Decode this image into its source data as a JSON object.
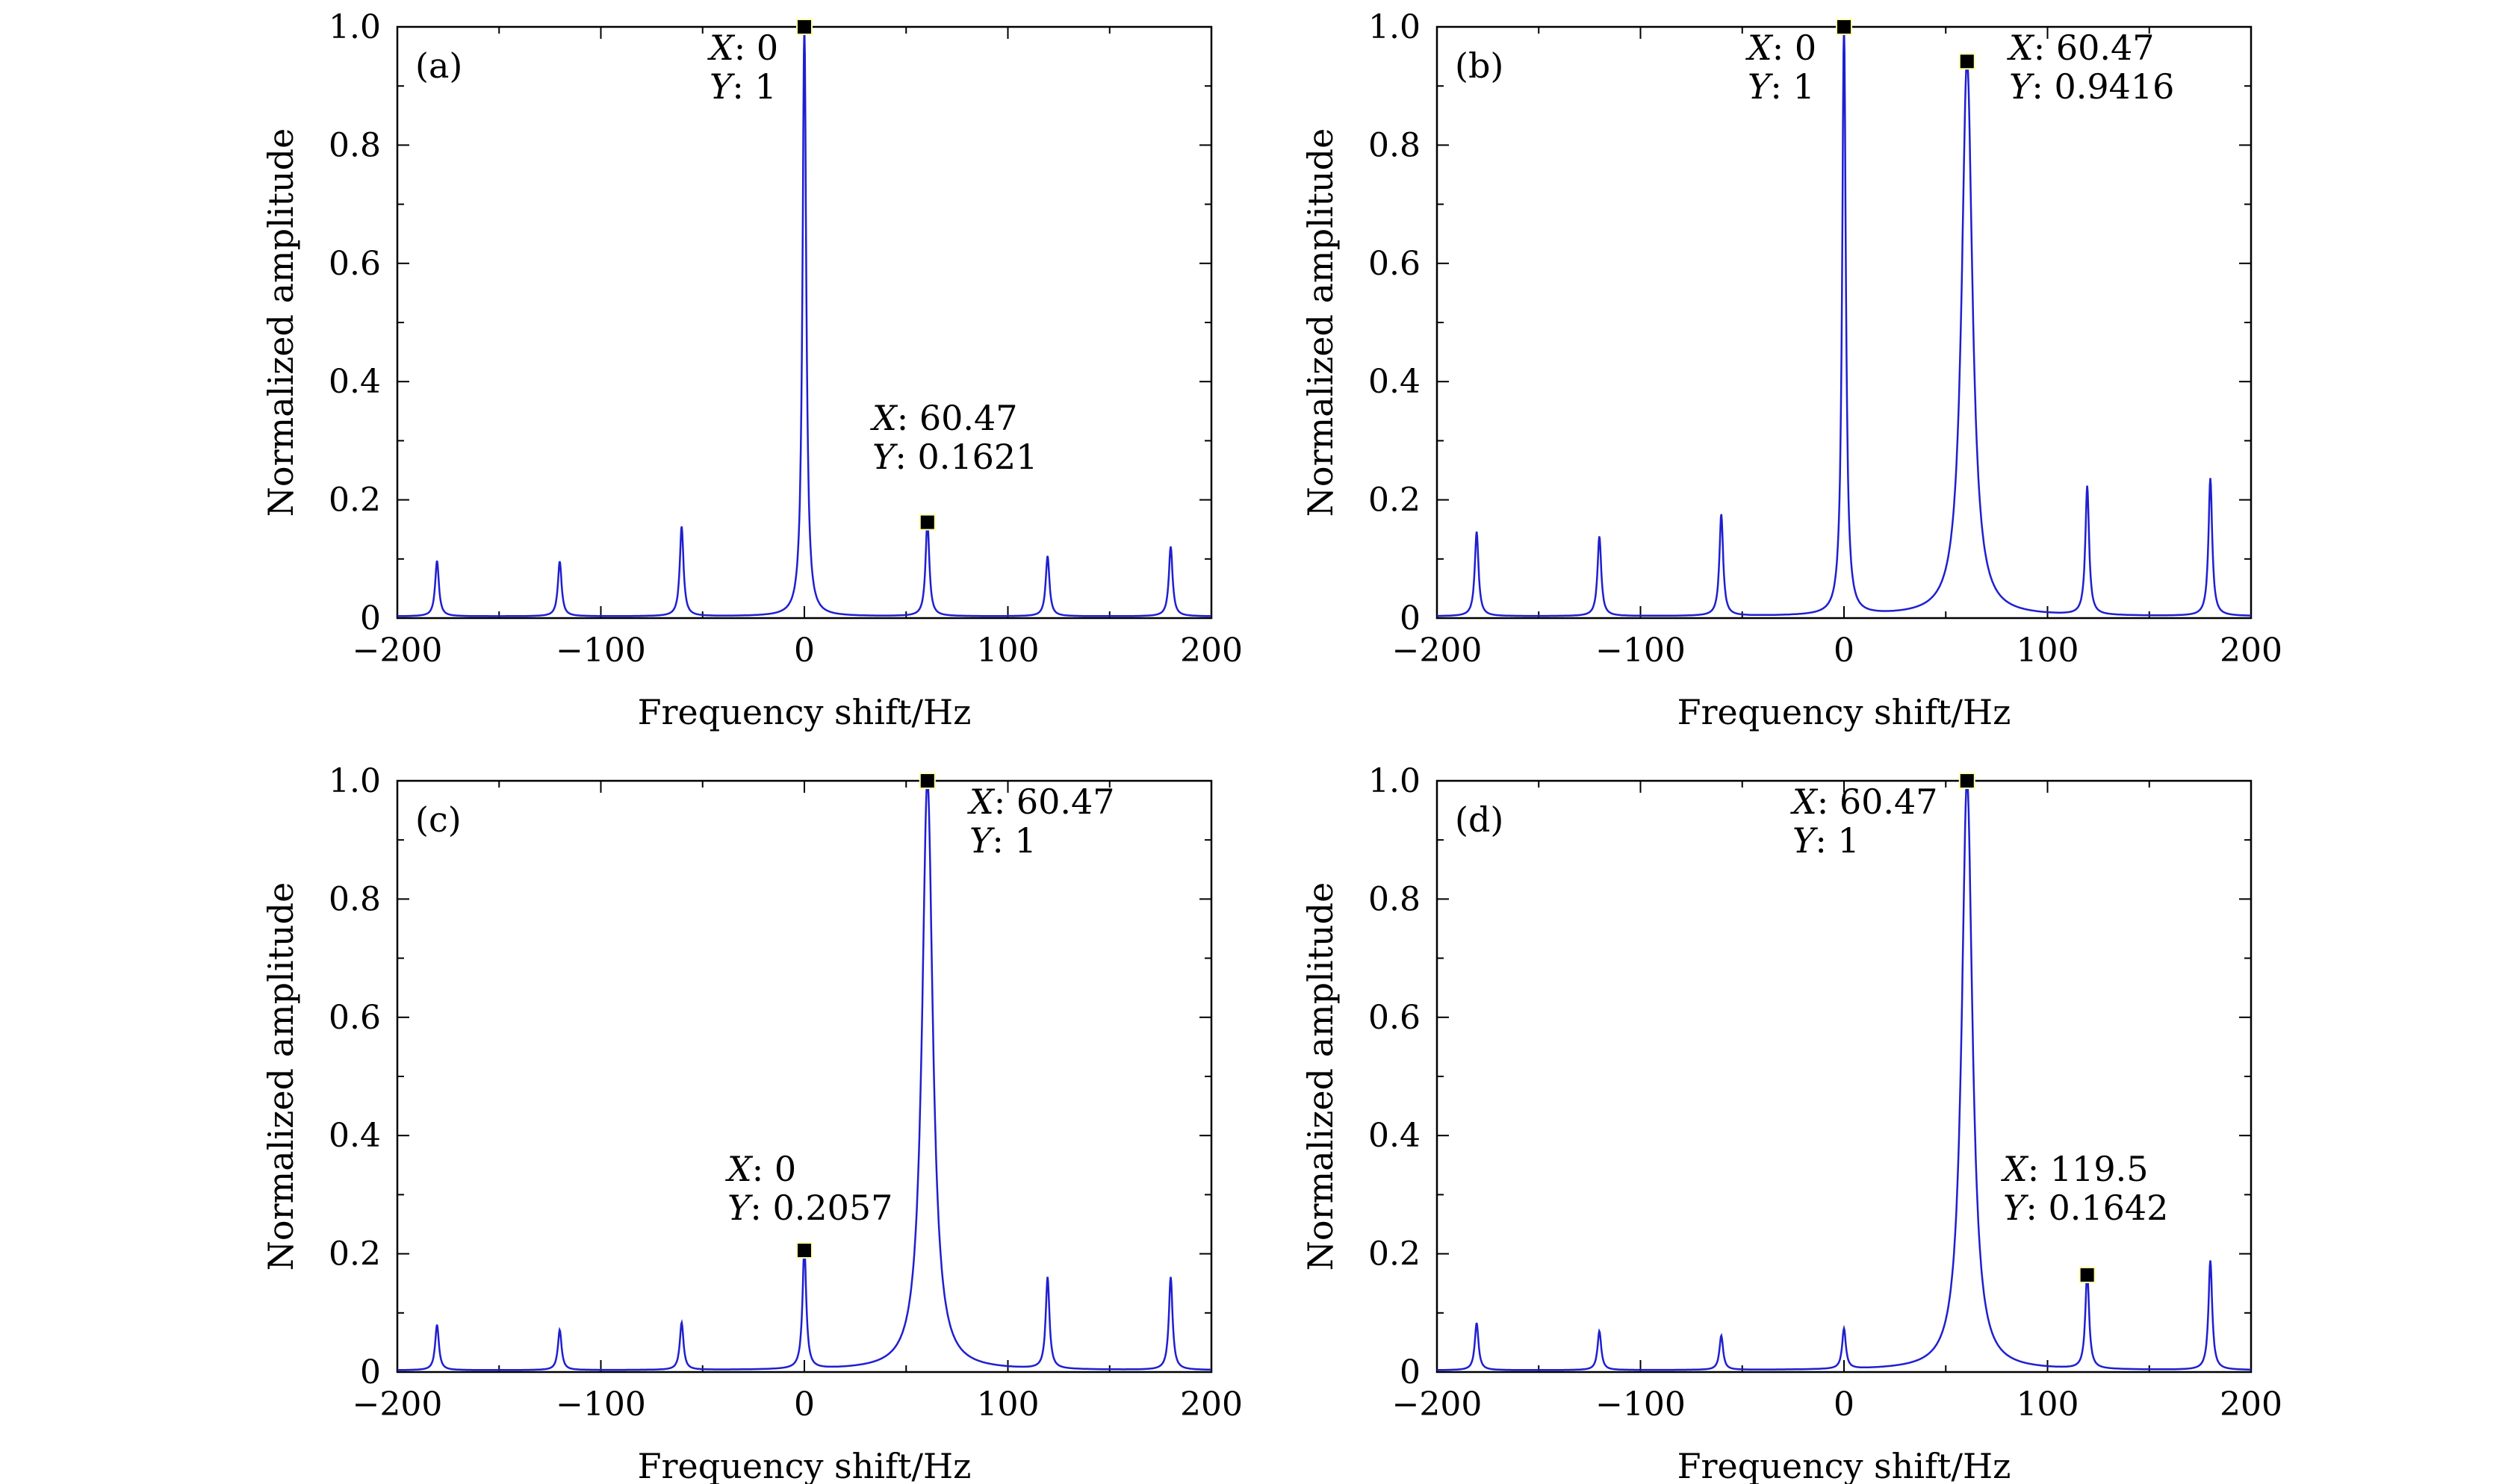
{
  "chart_data": [
    {
      "type": "line",
      "panel_label": "(a)",
      "xlabel": "Frequency shift/Hz",
      "ylabel": "Normalized amplitude",
      "xlim": [
        -200,
        200
      ],
      "ylim": [
        0,
        1
      ],
      "x_ticks": [
        "−200",
        "−100",
        "0",
        "100",
        "200"
      ],
      "y_ticks": [
        "0",
        "0.2",
        "0.4",
        "0.6",
        "0.8",
        "1.0"
      ],
      "grid": false,
      "line_color": "#1f1fd0",
      "peaks": [
        {
          "x": -180.5,
          "y": 0.094
        },
        {
          "x": -120.2,
          "y": 0.093
        },
        {
          "x": -60.3,
          "y": 0.152
        },
        {
          "x": 0,
          "y": 1.0
        },
        {
          "x": 60.47,
          "y": 0.1621
        },
        {
          "x": 119.5,
          "y": 0.102
        },
        {
          "x": 180.0,
          "y": 0.118
        }
      ],
      "markers": [
        {
          "x": 0,
          "y": 1,
          "lines": [
            {
              "key": "X",
              "value": "0"
            },
            {
              "key": "Y",
              "value": "1"
            }
          ]
        },
        {
          "x": 60.47,
          "y": 0.1621,
          "lines": [
            {
              "key": "X",
              "value": "60.47"
            },
            {
              "key": "Y",
              "value": "0.1621"
            }
          ]
        }
      ]
    },
    {
      "type": "line",
      "panel_label": "(b)",
      "xlabel": "Frequency shift/Hz",
      "ylabel": "Normalized amplitude",
      "xlim": [
        -200,
        200
      ],
      "ylim": [
        0,
        1
      ],
      "x_ticks": [
        "−200",
        "−100",
        "0",
        "100",
        "200"
      ],
      "y_ticks": [
        "0",
        "0.2",
        "0.4",
        "0.6",
        "0.8",
        "1.0"
      ],
      "grid": false,
      "line_color": "#1f1fd0",
      "peaks": [
        {
          "x": -180.5,
          "y": 0.143
        },
        {
          "x": -120.2,
          "y": 0.135
        },
        {
          "x": -60.3,
          "y": 0.172
        },
        {
          "x": 0,
          "y": 1.0
        },
        {
          "x": 60.47,
          "y": 0.9416
        },
        {
          "x": 119.5,
          "y": 0.218
        },
        {
          "x": 180.0,
          "y": 0.233
        }
      ],
      "markers": [
        {
          "x": 0,
          "y": 1,
          "lines": [
            {
              "key": "X",
              "value": "0"
            },
            {
              "key": "Y",
              "value": "1"
            }
          ]
        },
        {
          "x": 60.47,
          "y": 0.9416,
          "lines": [
            {
              "key": "X",
              "value": "60.47"
            },
            {
              "key": "Y",
              "value": "0.9416"
            }
          ]
        }
      ]
    },
    {
      "type": "line",
      "panel_label": "(c)",
      "xlabel": "Frequency shift/Hz",
      "ylabel": "Normalized amplitude",
      "xlim": [
        -200,
        200
      ],
      "ylim": [
        0,
        1
      ],
      "x_ticks": [
        "−200",
        "−100",
        "0",
        "100",
        "200"
      ],
      "y_ticks": [
        "0",
        "0.2",
        "0.4",
        "0.6",
        "0.8",
        "1.0"
      ],
      "grid": false,
      "line_color": "#1f1fd0",
      "peaks": [
        {
          "x": -180.5,
          "y": 0.077
        },
        {
          "x": -120.2,
          "y": 0.068
        },
        {
          "x": -60.3,
          "y": 0.08
        },
        {
          "x": 0,
          "y": 0.2057
        },
        {
          "x": 60.47,
          "y": 1.0
        },
        {
          "x": 119.5,
          "y": 0.155
        },
        {
          "x": 180.0,
          "y": 0.157
        }
      ],
      "markers": [
        {
          "x": 60.47,
          "y": 1,
          "lines": [
            {
              "key": "X",
              "value": "60.47"
            },
            {
              "key": "Y",
              "value": "1"
            }
          ]
        },
        {
          "x": 0,
          "y": 0.2057,
          "lines": [
            {
              "key": "X",
              "value": "0"
            },
            {
              "key": "Y",
              "value": "0.2057"
            }
          ]
        }
      ]
    },
    {
      "type": "line",
      "panel_label": "(d)",
      "xlabel": "Frequency shift/Hz",
      "ylabel": "Normalized amplitude",
      "xlim": [
        -200,
        200
      ],
      "ylim": [
        0,
        1
      ],
      "x_ticks": [
        "−200",
        "−100",
        "0",
        "100",
        "200"
      ],
      "y_ticks": [
        "0",
        "0.2",
        "0.4",
        "0.6",
        "0.8",
        "1.0"
      ],
      "grid": false,
      "line_color": "#1f1fd0",
      "peaks": [
        {
          "x": -180.5,
          "y": 0.08
        },
        {
          "x": -120.2,
          "y": 0.066
        },
        {
          "x": -60.3,
          "y": 0.058
        },
        {
          "x": 0,
          "y": 0.068
        },
        {
          "x": 60.47,
          "y": 1.0
        },
        {
          "x": 119.5,
          "y": 0.1642
        },
        {
          "x": 180.0,
          "y": 0.185
        }
      ],
      "markers": [
        {
          "x": 60.47,
          "y": 1,
          "lines": [
            {
              "key": "X",
              "value": "60.47"
            },
            {
              "key": "Y",
              "value": "1"
            }
          ]
        },
        {
          "x": 119.5,
          "y": 0.1642,
          "lines": [
            {
              "key": "X",
              "value": "119.5"
            },
            {
              "key": "Y",
              "value": "0.1642"
            }
          ]
        }
      ]
    }
  ]
}
